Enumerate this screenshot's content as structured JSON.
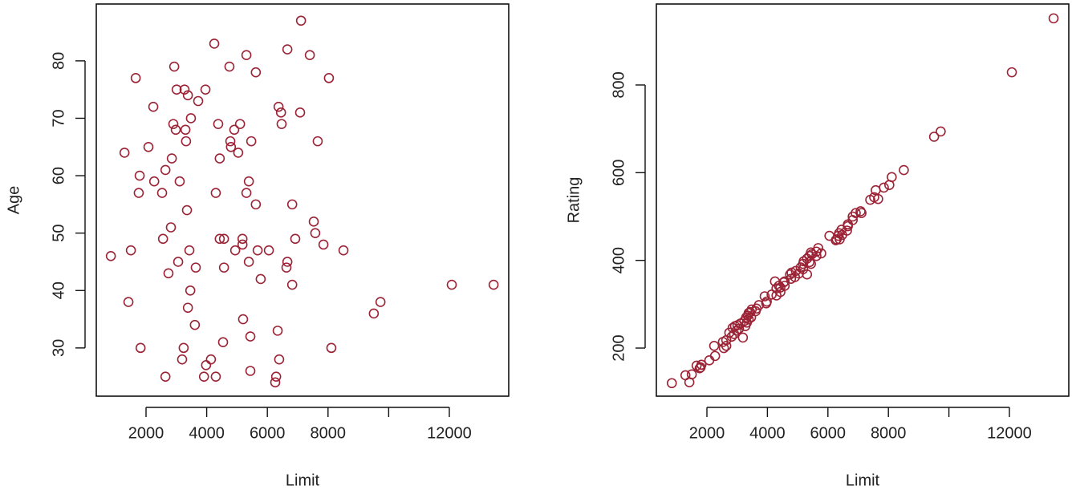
{
  "chart_data": [
    {
      "type": "scatter",
      "x_label": "Limit",
      "y_label": "Age",
      "color": "#9b2335",
      "x": [
        840,
        1290,
        1420,
        1500,
        1660,
        1790,
        1760,
        1820,
        2080,
        2240,
        2270,
        2530,
        2560,
        2640,
        2640,
        2740,
        2820,
        2850,
        2900,
        2930,
        2980,
        3010,
        3060,
        3110,
        3190,
        3240,
        3270,
        3300,
        3320,
        3350,
        3380,
        3380,
        3430,
        3460,
        3480,
        3610,
        3640,
        3720,
        3960,
        3910,
        3980,
        4140,
        4250,
        4300,
        4300,
        4380,
        4430,
        4430,
        4540,
        4570,
        4570,
        4750,
        4780,
        4800,
        4910,
        4940,
        5040,
        5100,
        5180,
        5180,
        5200,
        5310,
        5310,
        5390,
        5390,
        5440,
        5440,
        5470,
        5620,
        5620,
        5680,
        5780,
        6050,
        6290,
        6260,
        6340,
        6370,
        6390,
        6450,
        6470,
        6660,
        6630,
        6660,
        6820,
        6820,
        6920,
        7080,
        7110,
        7400,
        7530,
        7580,
        7660,
        7850,
        8030,
        8110,
        8510,
        9510,
        9730,
        12080,
        13460
      ],
      "y": [
        46,
        64,
        38,
        47,
        77,
        60,
        57,
        30,
        65,
        72,
        59,
        57,
        49,
        61,
        25,
        43,
        51,
        63,
        69,
        79,
        68,
        75,
        45,
        59,
        28,
        30,
        75,
        68,
        66,
        54,
        74,
        37,
        47,
        40,
        70,
        34,
        44,
        73,
        75,
        25,
        27,
        28,
        83,
        57,
        25,
        69,
        63,
        49,
        31,
        49,
        44,
        79,
        66,
        65,
        68,
        47,
        64,
        69,
        49,
        48,
        35,
        81,
        57,
        59,
        45,
        32,
        26,
        66,
        78,
        55,
        47,
        42,
        47,
        25,
        24,
        33,
        72,
        28,
        71,
        69,
        82,
        44,
        45,
        55,
        41,
        49,
        71,
        87,
        81,
        52,
        50,
        66,
        48,
        77,
        30,
        47,
        36,
        38,
        41,
        41
      ],
      "xlim": [
        360,
        13958
      ],
      "ylim": [
        21.6,
        89.9
      ],
      "xticks": [
        2000,
        4000,
        6000,
        8000,
        {
          "value": 10000,
          "label": null
        },
        12000
      ],
      "yticks": [
        30,
        40,
        50,
        60,
        70,
        80
      ]
    },
    {
      "type": "scatter",
      "x_label": "Limit",
      "y_label": "Rating",
      "color": "#9b2335",
      "x": [
        840,
        1290,
        1420,
        1500,
        1660,
        1790,
        1760,
        1820,
        2080,
        2240,
        2270,
        2530,
        2560,
        2640,
        2640,
        2740,
        2820,
        2850,
        2900,
        2930,
        2980,
        3010,
        3060,
        3110,
        3190,
        3240,
        3270,
        3300,
        3320,
        3350,
        3380,
        3380,
        3430,
        3460,
        3480,
        3610,
        3640,
        3720,
        3960,
        3910,
        3980,
        4140,
        4250,
        4300,
        4300,
        4380,
        4430,
        4430,
        4540,
        4570,
        4570,
        4750,
        4780,
        4800,
        4910,
        4940,
        5040,
        5100,
        5180,
        5180,
        5200,
        5310,
        5310,
        5390,
        5390,
        5440,
        5440,
        5470,
        5620,
        5620,
        5680,
        5780,
        6050,
        6290,
        6260,
        6340,
        6370,
        6390,
        6450,
        6470,
        6660,
        6630,
        6660,
        6820,
        6820,
        6920,
        7080,
        7110,
        7400,
        7530,
        7580,
        7660,
        7850,
        8030,
        8110,
        8510,
        9510,
        9730,
        12080,
        13460
      ],
      "y": [
        120,
        138,
        122,
        140,
        160,
        156,
        154,
        162,
        172,
        205,
        182,
        214,
        200,
        218,
        205,
        235,
        226,
        246,
        232,
        250,
        240,
        252,
        244,
        256,
        224,
        262,
        250,
        270,
        258,
        274,
        266,
        280,
        282,
        270,
        288,
        284,
        290,
        298,
        302,
        318,
        306,
        322,
        352,
        320,
        336,
        342,
        328,
        338,
        350,
        352,
        342,
        368,
        358,
        372,
        362,
        376,
        370,
        384,
        380,
        392,
        398,
        368,
        404,
        396,
        410,
        418,
        392,
        414,
        420,
        410,
        428,
        416,
        456,
        448,
        446,
        456,
        462,
        448,
        470,
        458,
        482,
        468,
        478,
        492,
        500,
        508,
        512,
        508,
        538,
        544,
        560,
        540,
        566,
        572,
        590,
        606,
        682,
        694,
        829,
        952
      ],
      "xlim": [
        329,
        13963
      ],
      "ylim": [
        90.3,
        984.7
      ],
      "xticks": [
        2000,
        4000,
        6000,
        8000,
        {
          "value": 10000,
          "label": null
        },
        12000
      ],
      "yticks": [
        200,
        400,
        600,
        800
      ]
    }
  ]
}
